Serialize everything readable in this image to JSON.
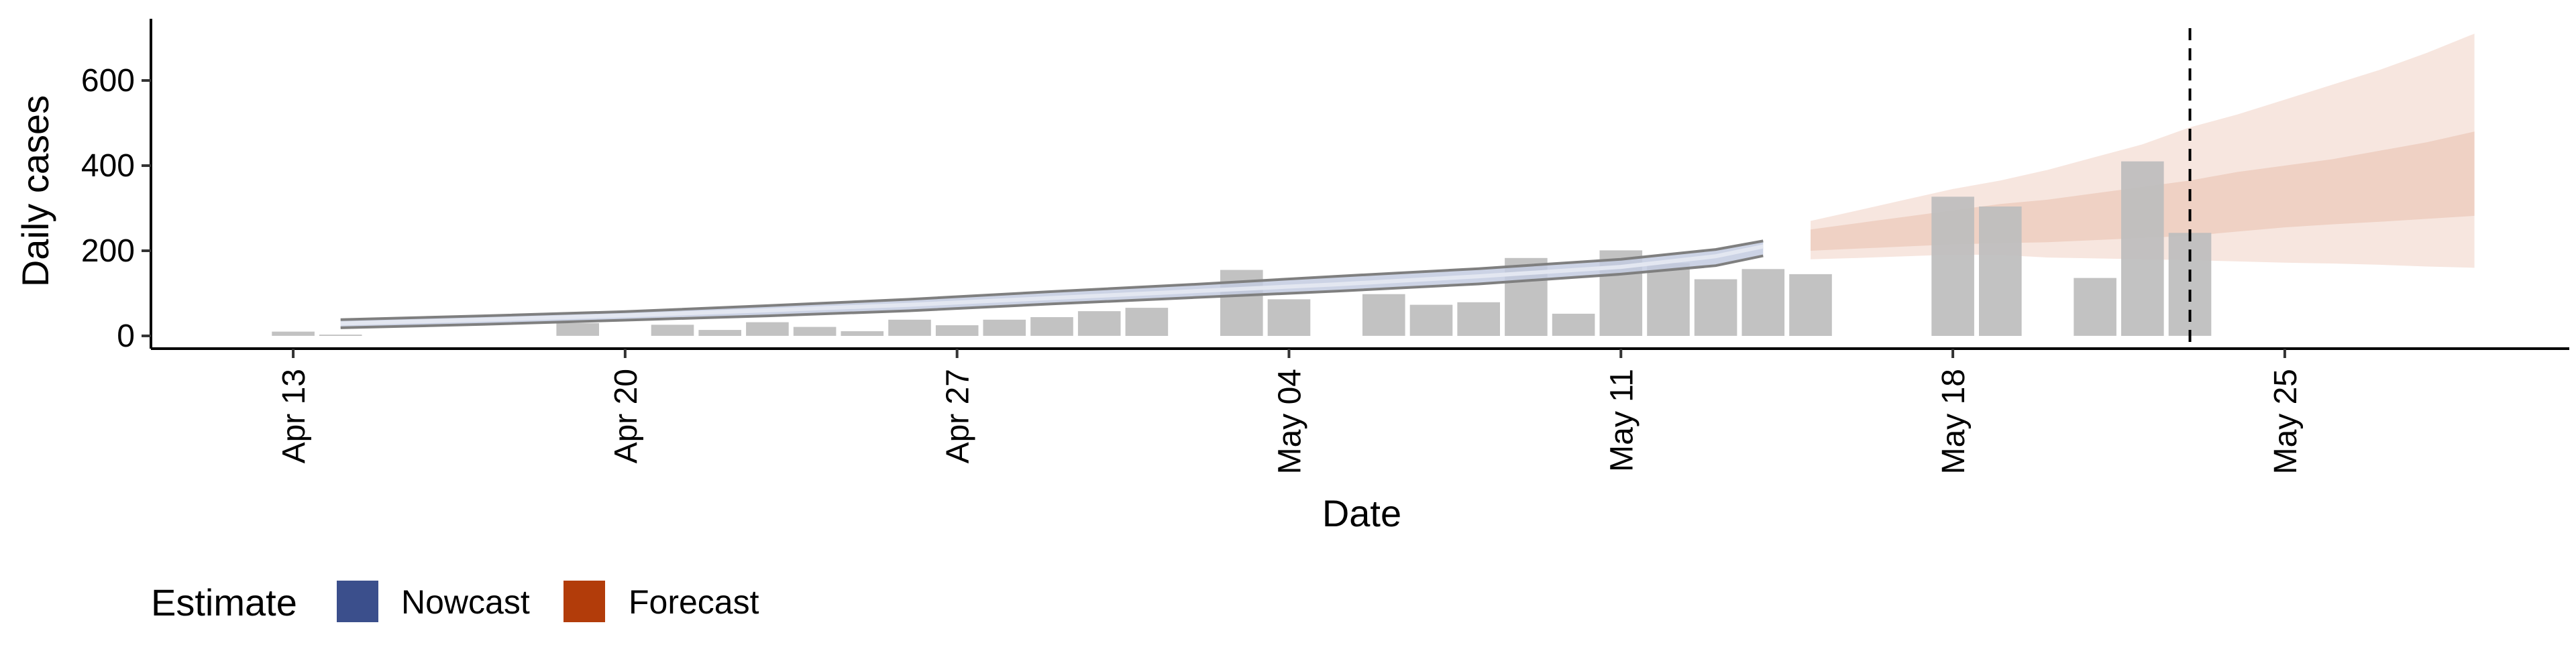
{
  "chart_data": {
    "type": "bar",
    "xlabel": "Date",
    "ylabel": "Daily cases",
    "ylim": [
      -30,
      745
    ],
    "xlim": [
      "2020-04-10",
      "2020-05-31"
    ],
    "x_ticks": [
      "Apr 13",
      "Apr 20",
      "Apr 27",
      "May 04",
      "May 11",
      "May 18",
      "May 25"
    ],
    "y_ticks": [
      "0",
      "200",
      "400",
      "600"
    ],
    "grid": false,
    "legend_position": "bottom-left",
    "vline_date": "2020-05-23",
    "colors": {
      "bars": "#bdbdbd",
      "nowcast": "#3b4f8c",
      "nowcast_band": "#c3cbe0",
      "nowcast_band_outline": "#7f7f7f",
      "forecast": "#b23c0a",
      "forecast_outer": "#f7e6df",
      "forecast_inner": "#efd1c4"
    },
    "observed": {
      "dates": [
        "2020-04-13",
        "2020-04-14",
        "2020-04-15",
        "2020-04-16",
        "2020-04-17",
        "2020-04-18",
        "2020-04-19",
        "2020-04-20",
        "2020-04-21",
        "2020-04-22",
        "2020-04-23",
        "2020-04-24",
        "2020-04-25",
        "2020-04-26",
        "2020-04-27",
        "2020-04-28",
        "2020-04-29",
        "2020-04-30",
        "2020-05-01",
        "2020-05-02",
        "2020-05-03",
        "2020-05-04",
        "2020-05-05",
        "2020-05-06",
        "2020-05-07",
        "2020-05-08",
        "2020-05-09",
        "2020-05-10",
        "2020-05-11",
        "2020-05-12",
        "2020-05-13",
        "2020-05-14",
        "2020-05-15",
        "2020-05-16",
        "2020-05-17",
        "2020-05-18",
        "2020-05-19",
        "2020-05-20",
        "2020-05-21",
        "2020-05-22",
        "2020-05-23"
      ],
      "values": [
        10,
        3,
        0,
        0,
        0,
        0,
        30,
        0,
        26,
        14,
        32,
        21,
        11,
        38,
        25,
        38,
        44,
        58,
        66,
        0,
        155,
        86,
        0,
        98,
        73,
        79,
        183,
        52,
        201,
        171,
        133,
        157,
        145,
        0,
        0,
        327,
        304,
        0,
        136,
        410,
        242
      ]
    },
    "nowcast": {
      "dates": [
        "2020-04-14",
        "2020-04-17",
        "2020-04-20",
        "2020-04-23",
        "2020-04-26",
        "2020-04-29",
        "2020-05-02",
        "2020-05-05",
        "2020-05-08",
        "2020-05-11",
        "2020-05-13",
        "2020-05-14"
      ],
      "lower": [
        19,
        27,
        37,
        47,
        59,
        75,
        90,
        105,
        122,
        145,
        165,
        188
      ],
      "median": [
        29,
        38,
        48,
        60,
        73,
        89,
        105,
        121,
        140,
        162,
        187,
        210
      ],
      "upper": [
        38,
        47,
        57,
        71,
        86,
        104,
        121,
        140,
        158,
        180,
        203,
        223
      ]
    },
    "forecast": {
      "dates": [
        "2020-05-15",
        "2020-05-16",
        "2020-05-17",
        "2020-05-18",
        "2020-05-19",
        "2020-05-20",
        "2020-05-21",
        "2020-05-22",
        "2020-05-23",
        "2020-05-24",
        "2020-05-25",
        "2020-05-26",
        "2020-05-27",
        "2020-05-28",
        "2020-05-29"
      ],
      "outer_lower": [
        180,
        183,
        187,
        191,
        190,
        184,
        182,
        180,
        178,
        175,
        172,
        170,
        167,
        163,
        160
      ],
      "inner_lower": [
        200,
        205,
        210,
        215,
        218,
        220,
        225,
        230,
        235,
        245,
        255,
        262,
        268,
        275,
        282
      ],
      "inner_upper": [
        250,
        265,
        280,
        295,
        310,
        320,
        335,
        350,
        365,
        385,
        400,
        415,
        435,
        455,
        480
      ],
      "outer_upper": [
        270,
        295,
        320,
        345,
        365,
        390,
        420,
        450,
        490,
        520,
        555,
        590,
        625,
        665,
        710
      ]
    }
  },
  "legend": {
    "title": "Estimate",
    "items": [
      {
        "label": "Nowcast",
        "color": "#3b4f8c"
      },
      {
        "label": "Forecast",
        "color": "#b23c0a"
      }
    ]
  }
}
